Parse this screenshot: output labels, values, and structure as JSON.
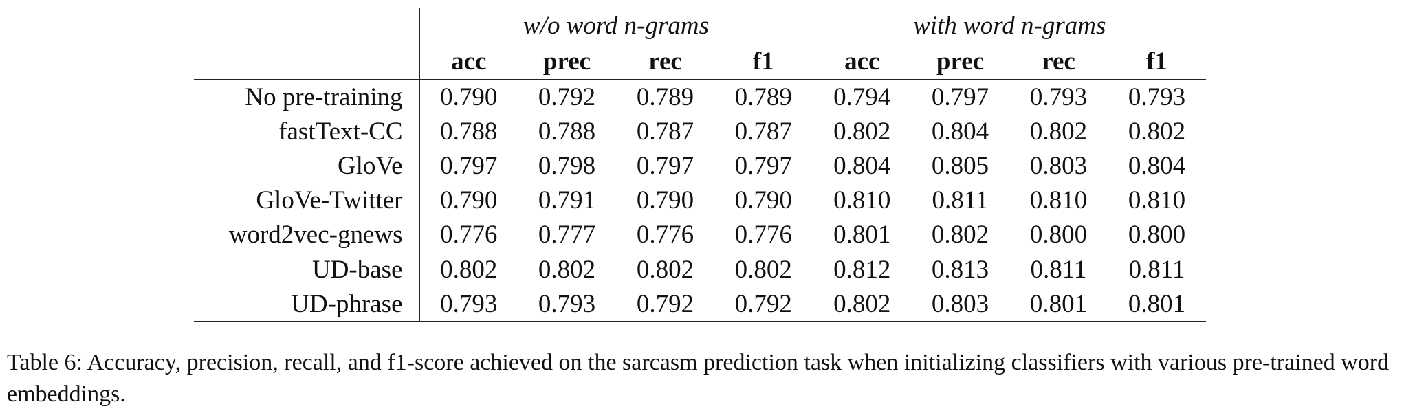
{
  "table": {
    "group_headers": [
      "w/o word n-grams",
      "with word n-grams"
    ],
    "metric_headers": [
      "acc",
      "prec",
      "rec",
      "f1",
      "acc",
      "prec",
      "rec",
      "f1"
    ],
    "rows": [
      {
        "label": "No pre-training",
        "values": [
          "0.790",
          "0.792",
          "0.789",
          "0.789",
          "0.794",
          "0.797",
          "0.793",
          "0.793"
        ]
      },
      {
        "label": "fastText-CC",
        "values": [
          "0.788",
          "0.788",
          "0.787",
          "0.787",
          "0.802",
          "0.804",
          "0.802",
          "0.802"
        ]
      },
      {
        "label": "GloVe",
        "values": [
          "0.797",
          "0.798",
          "0.797",
          "0.797",
          "0.804",
          "0.805",
          "0.803",
          "0.804"
        ]
      },
      {
        "label": "GloVe-Twitter",
        "values": [
          "0.790",
          "0.791",
          "0.790",
          "0.790",
          "0.810",
          "0.811",
          "0.810",
          "0.810"
        ]
      },
      {
        "label": "word2vec-gnews",
        "values": [
          "0.776",
          "0.777",
          "0.776",
          "0.776",
          "0.801",
          "0.802",
          "0.800",
          "0.800"
        ]
      },
      {
        "label": "UD-base",
        "values": [
          "0.802",
          "0.802",
          "0.802",
          "0.802",
          "0.812",
          "0.813",
          "0.811",
          "0.811"
        ]
      },
      {
        "label": "UD-phrase",
        "values": [
          "0.793",
          "0.793",
          "0.792",
          "0.792",
          "0.802",
          "0.803",
          "0.801",
          "0.801"
        ]
      }
    ]
  },
  "caption": "Table 6: Accuracy, precision, recall, and f1-score achieved on the sarcasm prediction task when initializing classifiers with various pre-trained word embeddings."
}
